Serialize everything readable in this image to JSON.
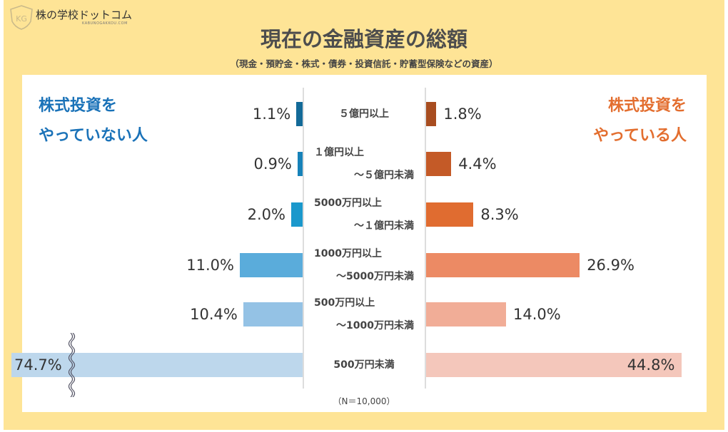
{
  "logo": {
    "name": "株の学校ドットコム",
    "sub": "KABUNOGAKKOU.COM",
    "initials": "KG"
  },
  "header": {
    "title": "現在の金融資産の総額",
    "subtitle": "（現金・預貯金・株式・債券・投資信託・貯蓄型保険などの資産）"
  },
  "chart_data": {
    "type": "bar",
    "title": "現在の金融資産の総額",
    "categories": [
      [
        "５億円以上"
      ],
      [
        "１億円以上",
        "～５億円未満"
      ],
      [
        "5000万円以上",
        "～１億円未満"
      ],
      [
        "1000万円以上",
        "～5000万円未満"
      ],
      [
        "500万円以上",
        "～1000万円未満"
      ],
      [
        "500万円未満"
      ]
    ],
    "series": [
      {
        "name": "株式投資をやっていない人",
        "name_lines": [
          "株式投資を",
          "やっていない人"
        ],
        "values": [
          1.1,
          0.9,
          2.0,
          11.0,
          10.4,
          74.7
        ],
        "labels": [
          "1.1%",
          "0.9%",
          "2.0%",
          "11.0%",
          "10.4%",
          "74.7%"
        ],
        "colors": [
          "#136a98",
          "#1782b9",
          "#1a98cc",
          "#5aacdb",
          "#94c2e5",
          "#bdd7ec"
        ],
        "color": "#1a72b8"
      },
      {
        "name": "株式投資をやっている人",
        "name_lines": [
          "株式投資を",
          "やっている人"
        ],
        "values": [
          1.8,
          4.4,
          8.3,
          26.9,
          14.0,
          44.8
        ],
        "labels": [
          "1.8%",
          "4.4%",
          "8.3%",
          "26.9%",
          "14.0%",
          "44.8%"
        ],
        "colors": [
          "#a84d20",
          "#c45a27",
          "#e06c30",
          "#ec8a64",
          "#f1ad97",
          "#f4c7bb"
        ],
        "color": "#e36e2f"
      }
    ],
    "note": "（N＝10,000）",
    "truncated": [
      "株式投資をやっていない人:500万円未満"
    ]
  }
}
